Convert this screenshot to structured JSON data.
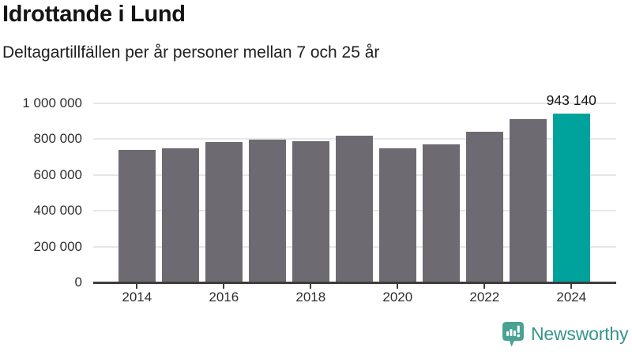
{
  "chart_data": {
    "type": "bar",
    "title": "Idrottande i Lund",
    "subtitle": "Deltagartillfällen per år personer mellan 7 och 25 år",
    "categories": [
      "2014",
      "2015",
      "2016",
      "2017",
      "2018",
      "2019",
      "2020",
      "2021",
      "2022",
      "2023",
      "2024"
    ],
    "values": [
      740000,
      750000,
      782000,
      797000,
      789000,
      820000,
      747000,
      772000,
      841000,
      911000,
      943140
    ],
    "highlight_index": 10,
    "highlighted_value_label": "943 140",
    "bar_color": "#6d6a72",
    "highlight_color": "#00a39b",
    "ylim": [
      0,
      1000000
    ],
    "ytick_values": [
      0,
      200000,
      400000,
      600000,
      800000,
      1000000
    ],
    "ytick_labels": [
      "0",
      "200 000",
      "400 000",
      "600 000",
      "800 000",
      "1 000 000"
    ],
    "xtick_labels": [
      "2014",
      "2016",
      "2018",
      "2020",
      "2022",
      "2024"
    ],
    "grid": "horizontal",
    "legend": "none",
    "axis_color": "#3d3d3d",
    "gridline_color": "#e7e7e7"
  },
  "branding": {
    "logo_text": "Newsworthy",
    "logo_icon": "bar-chart-speech-bubble-icon",
    "icon_color": "#4aa294",
    "text_color": "#38948b"
  }
}
